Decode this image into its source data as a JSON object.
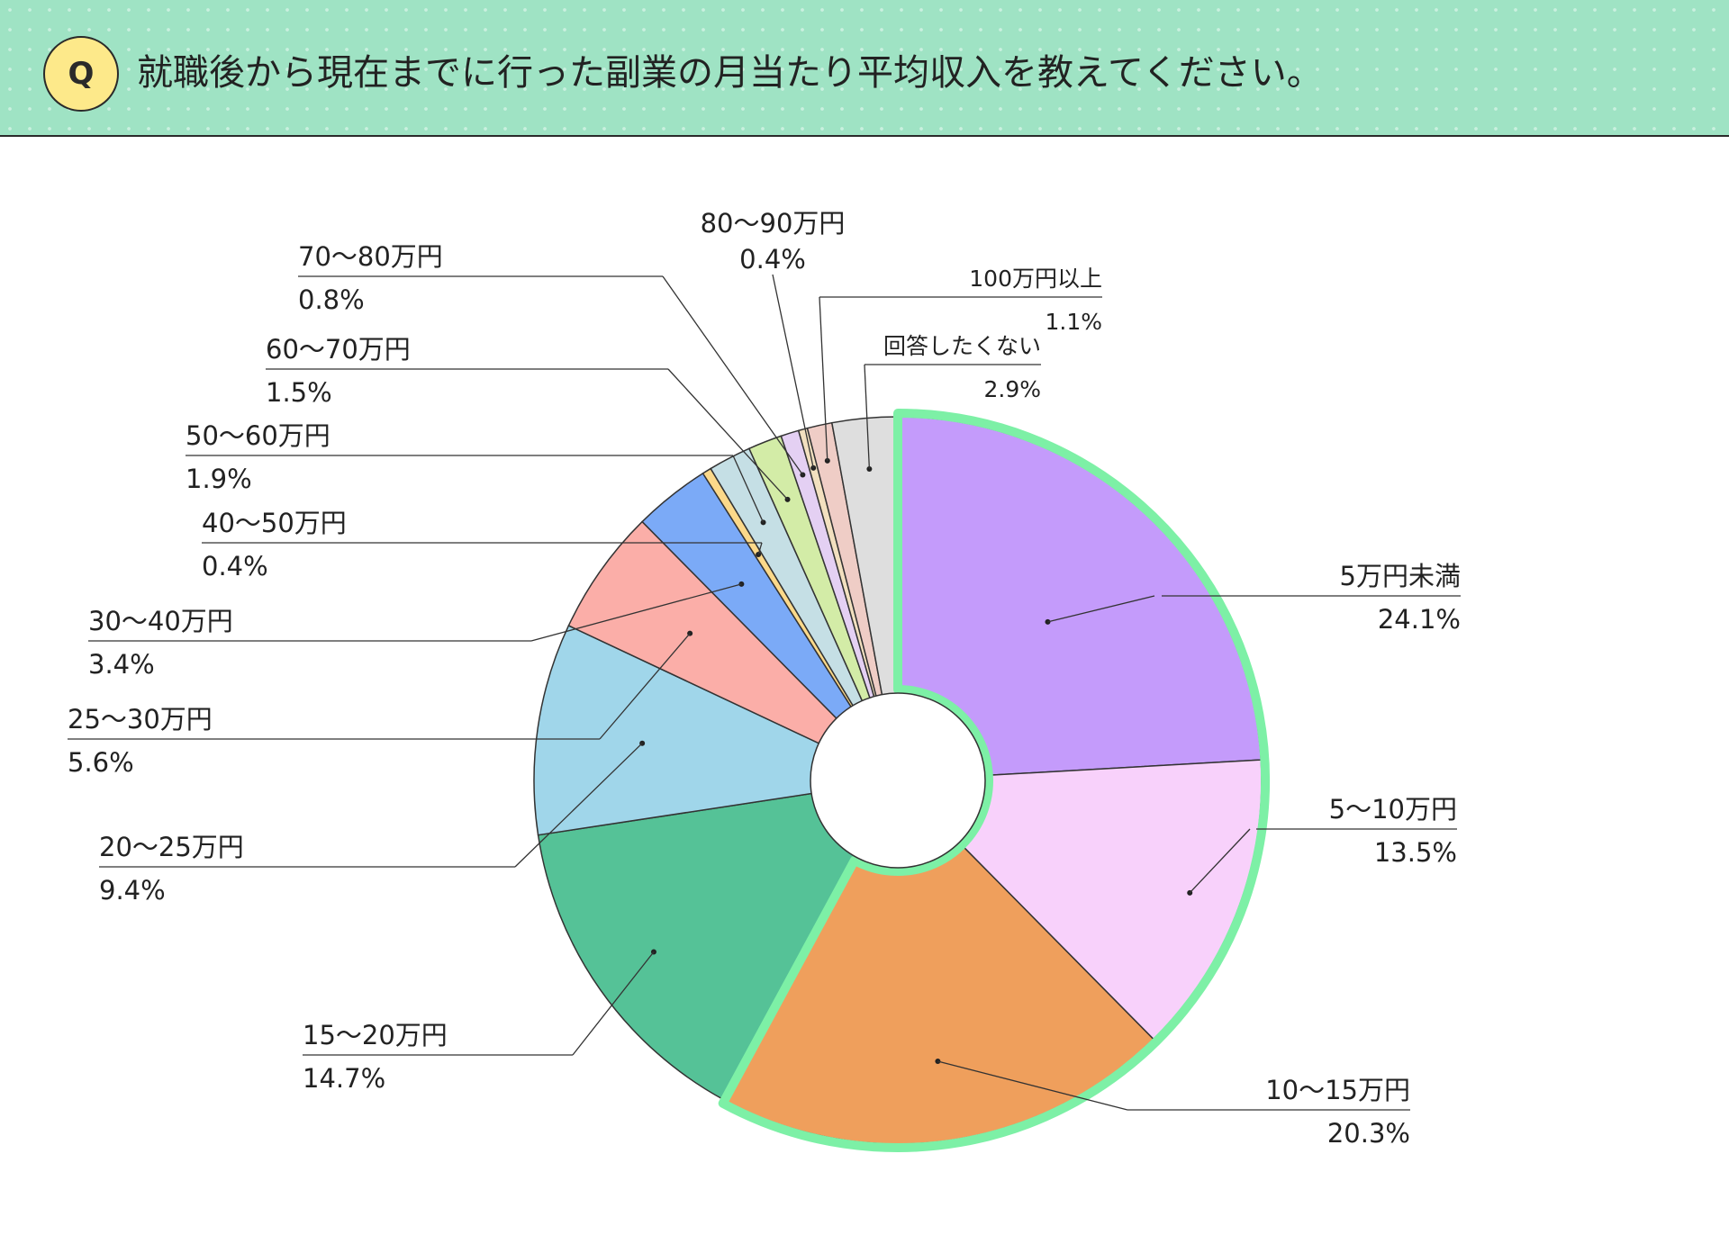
{
  "header": {
    "badge": "Q",
    "question": "就職後から現在までに行った副業の月当たり平均収入を教えてください。"
  },
  "colors": {
    "header_bg": "#9fe3c4",
    "badge_bg": "#fde98a",
    "highlight": "#7df0a6"
  },
  "chart_data": {
    "type": "pie",
    "title": "",
    "donut": true,
    "start": "top, clockwise",
    "slices": [
      {
        "label": "5万円未満",
        "value": 24.1,
        "value_label": "24.1%",
        "color": "#c49bfb"
      },
      {
        "label": "5〜10万円",
        "value": 13.5,
        "value_label": "13.5%",
        "color": "#f8d1fb"
      },
      {
        "label": "10〜15万円",
        "value": 20.3,
        "value_label": "20.3%",
        "color": "#ef9f5c"
      },
      {
        "label": "15〜20万円",
        "value": 14.7,
        "value_label": "14.7%",
        "color": "#55c297"
      },
      {
        "label": "20〜25万円",
        "value": 9.4,
        "value_label": "9.4%",
        "color": "#a0d6ea"
      },
      {
        "label": "25〜30万円",
        "value": 5.6,
        "value_label": "5.6%",
        "color": "#fbaea8"
      },
      {
        "label": "30〜40万円",
        "value": 3.4,
        "value_label": "3.4%",
        "color": "#7baaf7"
      },
      {
        "label": "40〜50万円",
        "value": 0.4,
        "value_label": "0.4%",
        "color": "#fcd98a"
      },
      {
        "label": "50〜60万円",
        "value": 1.9,
        "value_label": "1.9%",
        "color": "#c5dfe5"
      },
      {
        "label": "60〜70万円",
        "value": 1.5,
        "value_label": "1.5%",
        "color": "#d3eca7"
      },
      {
        "label": "70〜80万円",
        "value": 0.8,
        "value_label": "0.8%",
        "color": "#e4d0f3"
      },
      {
        "label": "80〜90万円",
        "value": 0.4,
        "value_label": "0.4%",
        "color": "#f2e0bf"
      },
      {
        "label": "100万円以上",
        "value": 1.1,
        "value_label": "1.1%",
        "color": "#efcdc6"
      },
      {
        "label": "回答したくない",
        "value": 2.9,
        "value_label": "2.9%",
        "color": "#dedede"
      }
    ],
    "highlighted": [
      "5万円未満",
      "5〜10万円",
      "10〜15万円"
    ]
  }
}
